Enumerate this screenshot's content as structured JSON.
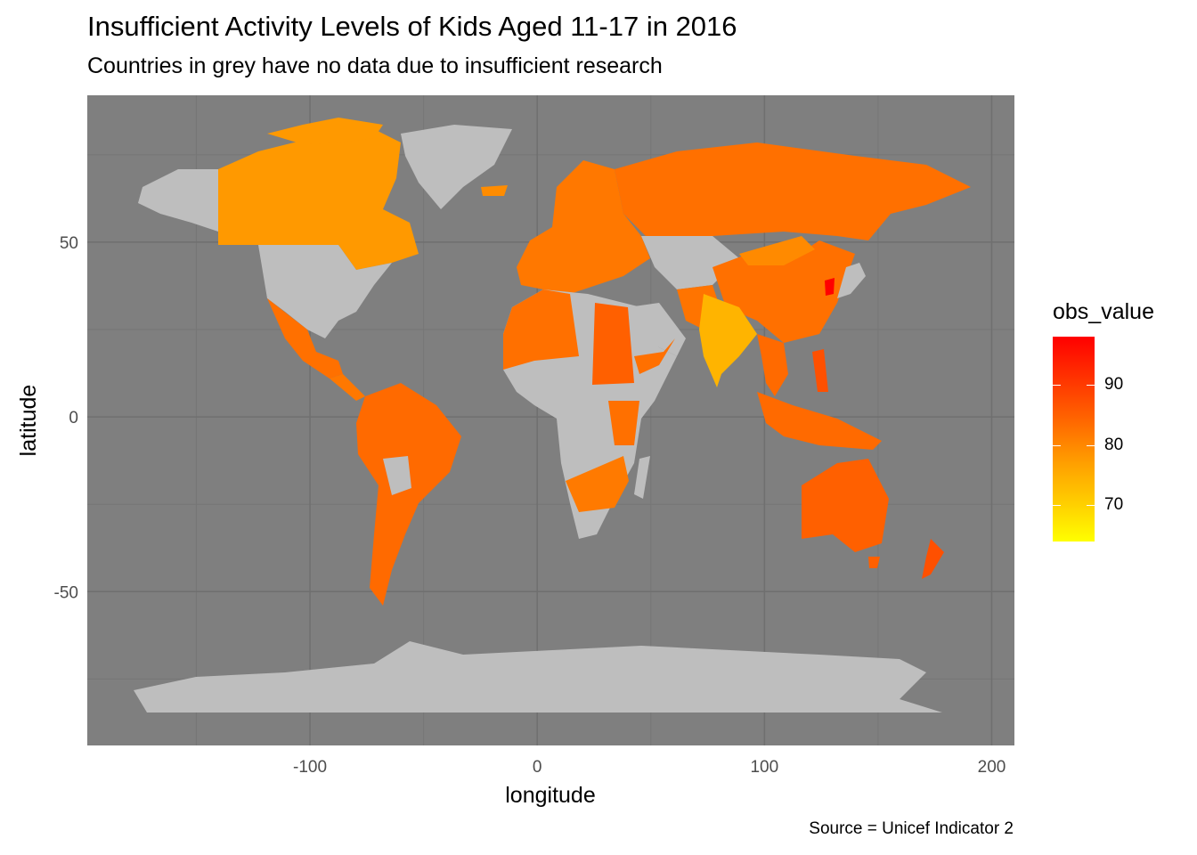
{
  "chart_data": {
    "type": "choropleth_map",
    "title": "Insufficient Activity Levels of Kids Aged 11-17 in 2016",
    "subtitle": "Countries in grey have no data due to insufficient research",
    "caption": "Source = Unicef Indicator 2",
    "xlabel": "longitude",
    "ylabel": "latitude",
    "xlim": [
      -198,
      210
    ],
    "ylim": [
      -94,
      92
    ],
    "x_ticks": [
      -100,
      0,
      100,
      200
    ],
    "x_tick_labels": [
      "-100",
      "0",
      "100",
      "200"
    ],
    "y_ticks": [
      -50,
      0,
      50
    ],
    "y_tick_labels": [
      "-50",
      "0",
      "50"
    ],
    "grid": true,
    "legend": {
      "title": "obs_value",
      "position": "right",
      "range": [
        64,
        98
      ],
      "ticks": [
        70,
        80,
        90
      ],
      "tick_labels": [
        "70",
        "80",
        "90"
      ],
      "low_color": "#ffff00",
      "high_color": "#ff0000"
    },
    "colors": {
      "panel": "#7f7f7f",
      "no_data": "#bebebe",
      "grid_major": "#6f6f6f",
      "grid_minor": "#767676"
    }
  }
}
